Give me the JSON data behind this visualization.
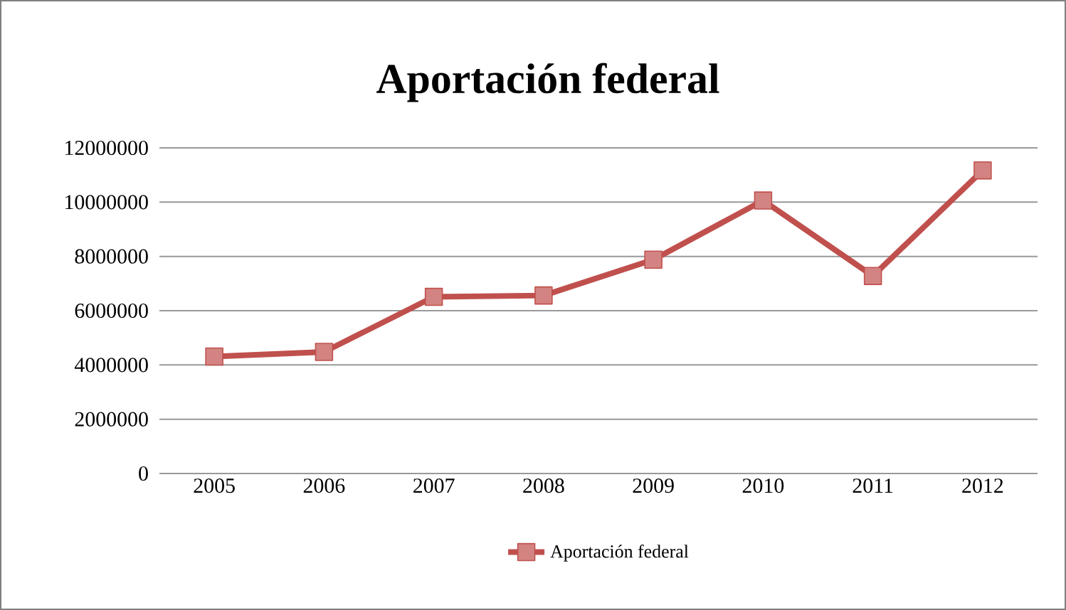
{
  "chart_data": {
    "type": "line",
    "title": "Aportación federal",
    "categories": [
      "2005",
      "2006",
      "2007",
      "2008",
      "2009",
      "2010",
      "2011",
      "2012"
    ],
    "series": [
      {
        "name": "Aportación federal",
        "color": "#c0504d",
        "values": [
          4310000,
          4480000,
          6510000,
          6560000,
          7880000,
          10060000,
          7280000,
          11170000
        ]
      }
    ],
    "ylim": [
      0,
      12000000
    ],
    "yticks": [
      0,
      2000000,
      4000000,
      6000000,
      8000000,
      10000000,
      12000000
    ],
    "grid": "y",
    "legend": "bottom",
    "marker": "square",
    "line_style": "solid"
  }
}
